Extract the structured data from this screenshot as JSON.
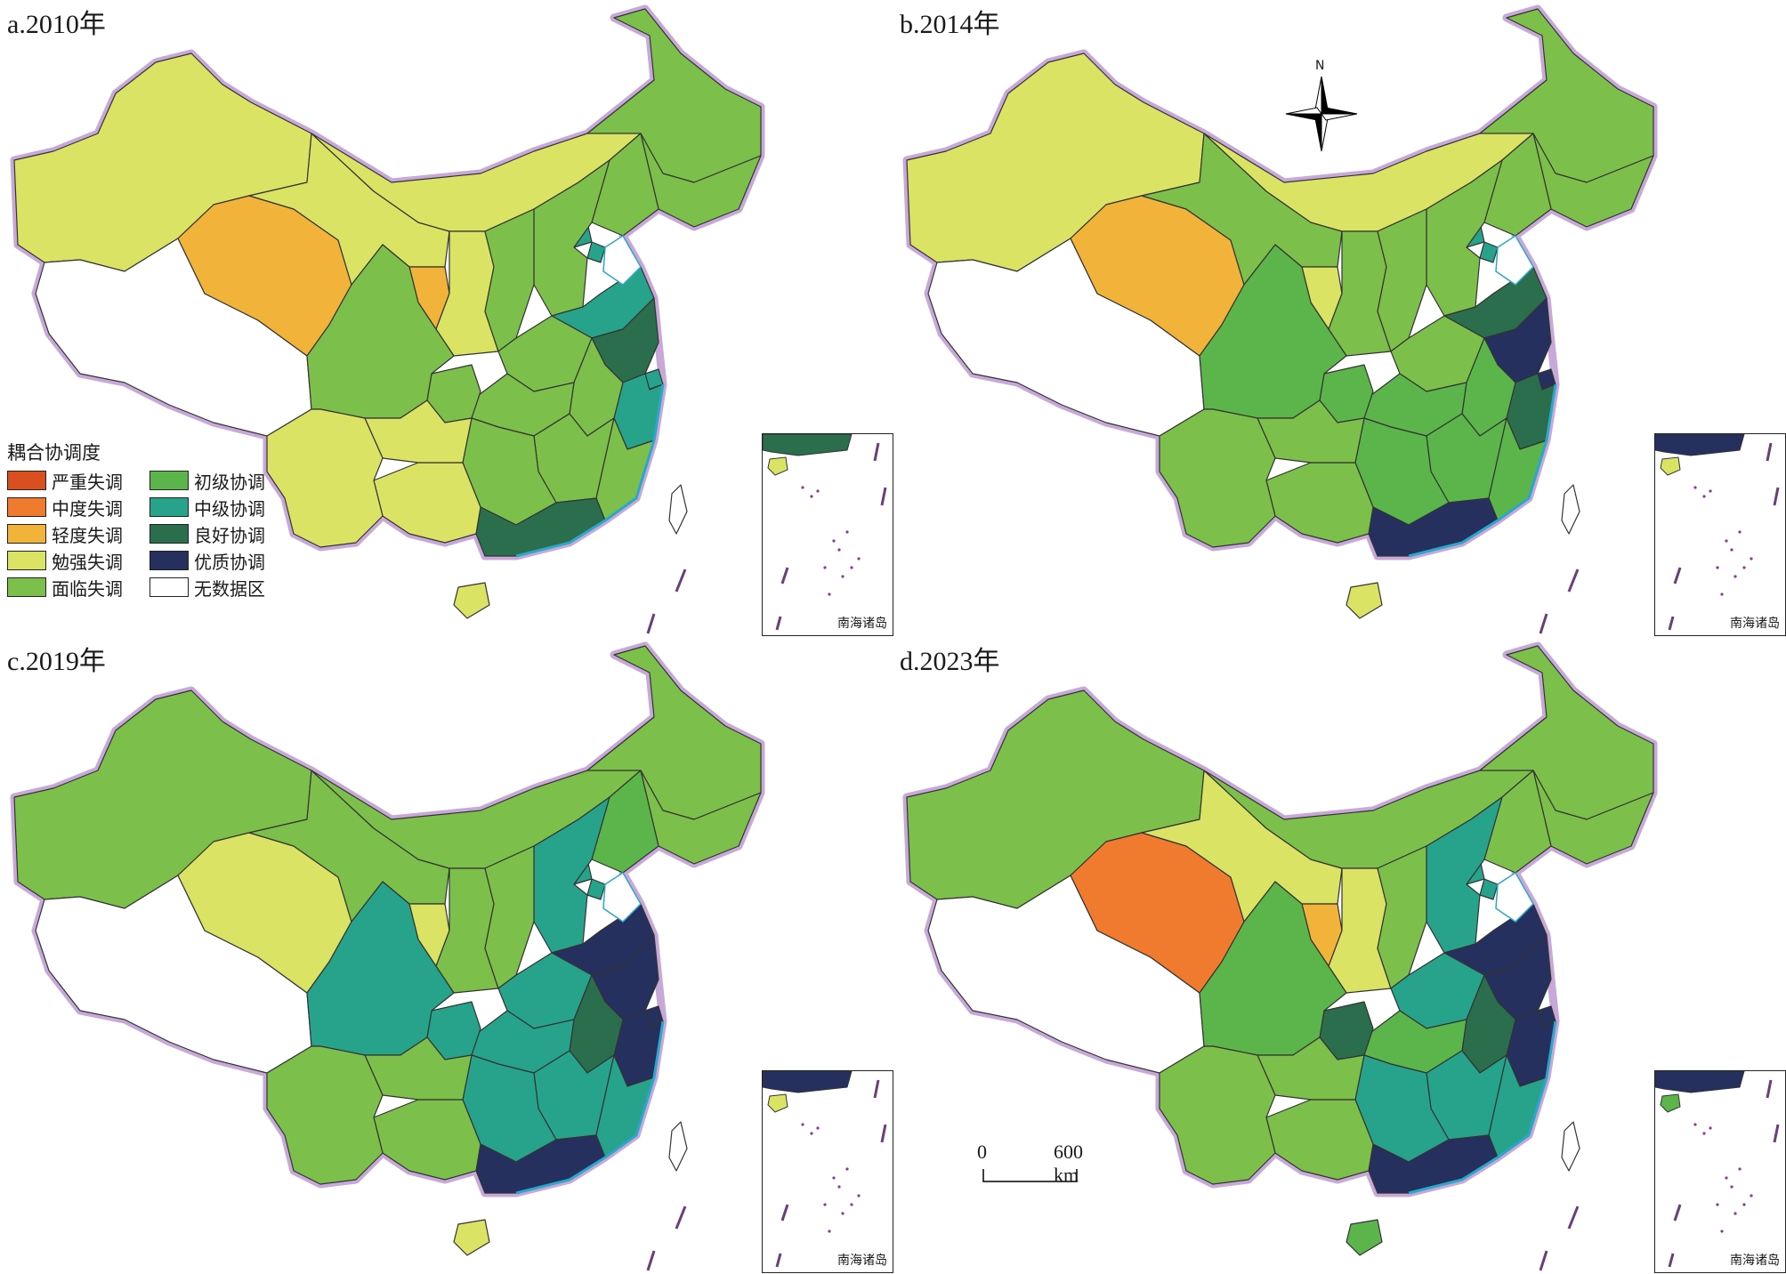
{
  "panels": [
    {
      "label": "a.2010年",
      "colors": {
        "xj": "mianqiang",
        "xz": "nodata",
        "qh": "qingdu",
        "gs": "mianqiang",
        "nm": "mianqiang",
        "nx": "qingdu",
        "sx3": "mianqiang",
        "hlj": "mianlin",
        "jl": "mianlin",
        "ln": "mianlin",
        "bj": "zhongji",
        "tj": "zhongji",
        "hb": "mianlin",
        "sx": "mianlin",
        "sd": "zhongji",
        "hn": "mianlin",
        "js": "lianghao",
        "sh": "zhongji",
        "zj": "zhongji",
        "ah": "mianlin",
        "hb2": "mianlin",
        "jx": "mianlin",
        "fj": "mianlin",
        "hun": "mianlin",
        "gd": "lianghao",
        "gx": "mianqiang",
        "hi": "mianqiang",
        "cq": "mianlin",
        "sc": "mianlin",
        "gz": "mianqiang",
        "yn": "mianqiang",
        "tw": "nodata"
      }
    },
    {
      "label": "b.2014年",
      "colors": {
        "xj": "mianqiang",
        "xz": "nodata",
        "qh": "qingdu",
        "gs": "mianlin",
        "nm": "mianqiang",
        "nx": "mianqiang",
        "sx3": "mianlin",
        "hlj": "mianlin",
        "jl": "mianlin",
        "ln": "mianlin",
        "bj": "zhongji",
        "tj": "zhongji",
        "hb": "mianlin",
        "sx": "mianlin",
        "sd": "lianghao",
        "hn": "mianlin",
        "js": "youzhi",
        "sh": "youzhi",
        "zj": "lianghao",
        "ah": "chuji",
        "hb2": "chuji",
        "jx": "chuji",
        "fj": "chuji",
        "hun": "chuji",
        "gd": "youzhi",
        "gx": "mianlin",
        "hi": "mianqiang",
        "cq": "chuji",
        "sc": "chuji",
        "gz": "mianlin",
        "yn": "mianlin",
        "tw": "nodata"
      }
    },
    {
      "label": "c.2019年",
      "colors": {
        "xj": "mianlin",
        "xz": "nodata",
        "qh": "mianqiang",
        "gs": "mianlin",
        "nm": "mianlin",
        "nx": "mianqiang",
        "sx3": "mianlin",
        "hlj": "mianlin",
        "jl": "mianlin",
        "ln": "chuji",
        "bj": "zhongji",
        "tj": "zhongji",
        "hb": "zhongji",
        "sx": "mianlin",
        "sd": "youzhi",
        "hn": "zhongji",
        "js": "youzhi",
        "sh": "youzhi",
        "zj": "youzhi",
        "ah": "lianghao",
        "hb2": "zhongji",
        "jx": "zhongji",
        "fj": "zhongji",
        "hun": "zhongji",
        "gd": "youzhi",
        "gx": "mianlin",
        "hi": "mianqiang",
        "cq": "zhongji",
        "sc": "zhongji",
        "gz": "mianlin",
        "yn": "mianlin",
        "tw": "nodata"
      }
    },
    {
      "label": "d.2023年",
      "colors": {
        "xj": "mianlin",
        "xz": "nodata",
        "qh": "zhongdu",
        "gs": "mianqiang",
        "nm": "mianlin",
        "nx": "qingdu",
        "sx3": "mianqiang",
        "hlj": "mianlin",
        "jl": "mianlin",
        "ln": "mianlin",
        "bj": "zhongji",
        "tj": "zhongji",
        "hb": "zhongji",
        "sx": "mianlin",
        "sd": "youzhi",
        "hn": "zhongji",
        "js": "youzhi",
        "sh": "youzhi",
        "zj": "youzhi",
        "ah": "lianghao",
        "hb2": "chuji",
        "jx": "zhongji",
        "fj": "zhongji",
        "hun": "zhongji",
        "gd": "youzhi",
        "gx": "mianlin",
        "hi": "chuji",
        "cq": "lianghao",
        "sc": "chuji",
        "gz": "mianlin",
        "yn": "mianlin",
        "tw": "nodata"
      }
    }
  ],
  "legend": {
    "title": "耦合协调度",
    "items": [
      {
        "key": "yanzhong",
        "label": "严重失调",
        "color": "#d94f1f"
      },
      {
        "key": "chuji",
        "label": "初级协调",
        "color": "#5bb54a"
      },
      {
        "key": "zhongdu",
        "label": "中度失调",
        "color": "#f07a2e"
      },
      {
        "key": "zhongji",
        "label": "中级协调",
        "color": "#26a38a"
      },
      {
        "key": "qingdu",
        "label": "轻度失调",
        "color": "#f2b33a"
      },
      {
        "key": "lianghao",
        "label": "良好协调",
        "color": "#2b6e4e"
      },
      {
        "key": "mianqiang",
        "label": "勉强失调",
        "color": "#dbe364"
      },
      {
        "key": "youzhi",
        "label": "优质协调",
        "color": "#25305f"
      },
      {
        "key": "mianlin",
        "label": "面临失调",
        "color": "#7cc04b"
      },
      {
        "key": "nodata",
        "label": "无数据区",
        "color": "#ffffff"
      }
    ]
  },
  "inset_label": "南海诸岛",
  "compass_label": "N",
  "scale": {
    "zero": "0",
    "end": "600 km"
  },
  "border_color": "#c7a8d8"
}
